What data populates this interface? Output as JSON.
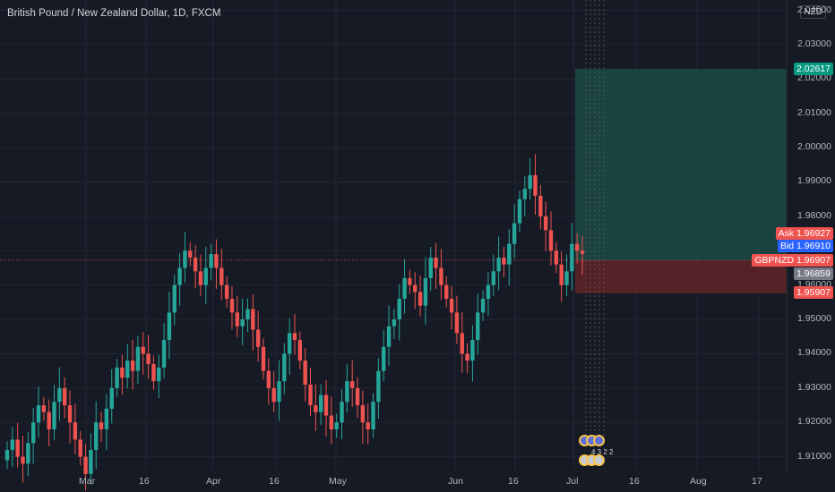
{
  "header": {
    "title": "British Pound / New Zealand Dollar, 1D, FXCM"
  },
  "price_axis": {
    "currency": "NZD",
    "ticks": [
      "2.04000",
      "2.03000",
      "2.02000",
      "2.01000",
      "2.00000",
      "1.99000",
      "1.98000",
      "1.97000",
      "1.96000",
      "1.95000",
      "1.94000",
      "1.93000",
      "1.92000",
      "1.91000"
    ]
  },
  "time_axis": {
    "ticks": [
      "Mar",
      "16",
      "Apr",
      "16",
      "May",
      "Jun",
      "16",
      "Jul",
      "16",
      "Aug",
      "17"
    ]
  },
  "price_tags": {
    "target": "2.02617",
    "ask": "Ask  1.96927",
    "bid": "Bid  1.96910",
    "symbol": "GBPNZD  1.96907",
    "entry": "1.96859",
    "stop": "1.95907"
  },
  "events": {
    "upper_count": "4 3 2 2"
  },
  "colors": {
    "background": "#161a25",
    "up": "#26a69a",
    "down": "#ef5350",
    "profit_zone": "#1b4a45",
    "loss_zone": "#5b2327",
    "bid_tag": "#2962ff",
    "entry_tag": "#787b86"
  },
  "chart_data": {
    "type": "candlestick",
    "symbol": "GBPNZD",
    "interval": "1D",
    "ylim": [
      1.906,
      2.043
    ],
    "x_months": [
      "Mar",
      "Apr",
      "May",
      "Jun",
      "Jul",
      "Aug"
    ],
    "candles_close": [
      1.912,
      1.915,
      1.91,
      1.908,
      1.914,
      1.92,
      1.925,
      1.923,
      1.918,
      1.926,
      1.93,
      1.925,
      1.92,
      1.915,
      1.91,
      1.905,
      1.912,
      1.92,
      1.918,
      1.924,
      1.93,
      1.936,
      1.933,
      1.938,
      1.935,
      1.942,
      1.94,
      1.937,
      1.932,
      1.936,
      1.944,
      1.952,
      1.96,
      1.965,
      1.97,
      1.968,
      1.964,
      1.96,
      1.965,
      1.969,
      1.965,
      1.96,
      1.956,
      1.952,
      1.948,
      1.95,
      1.953,
      1.947,
      1.942,
      1.935,
      1.93,
      1.926,
      1.932,
      1.94,
      1.946,
      1.944,
      1.938,
      1.931,
      1.925,
      1.923,
      1.928,
      1.922,
      1.918,
      1.92,
      1.926,
      1.932,
      1.93,
      1.925,
      1.92,
      1.918,
      1.926,
      1.935,
      1.942,
      1.948,
      1.95,
      1.956,
      1.962,
      1.96,
      1.958,
      1.954,
      1.962,
      1.968,
      1.965,
      1.96,
      1.956,
      1.952,
      1.946,
      1.94,
      1.938,
      1.944,
      1.952,
      1.956,
      1.96,
      1.964,
      1.968,
      1.966,
      1.972,
      1.978,
      1.985,
      1.988,
      1.992,
      1.986,
      1.98,
      1.976,
      1.97,
      1.966,
      1.96,
      1.964,
      1.972,
      1.97,
      1.9691
    ]
  }
}
